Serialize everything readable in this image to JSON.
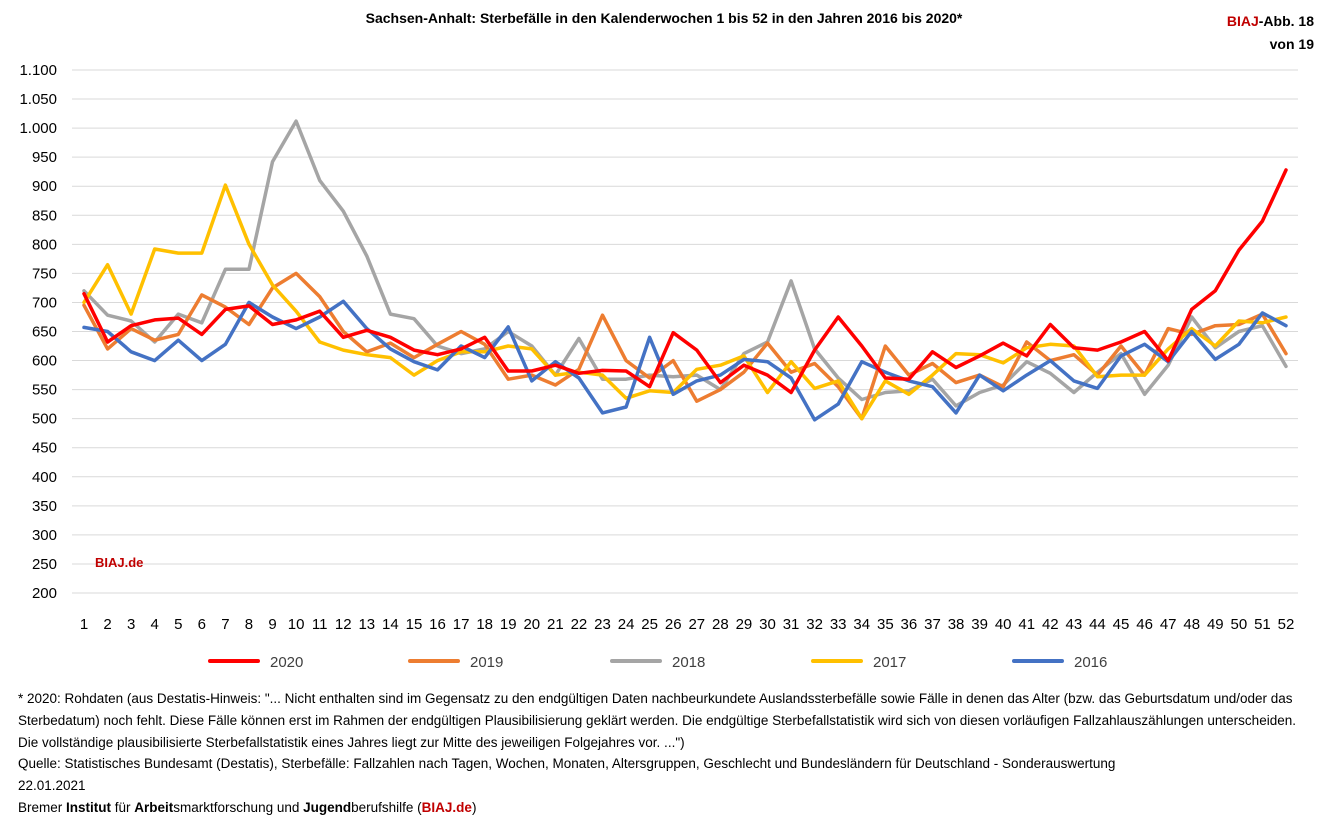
{
  "header": {
    "title": "Sachsen-Anhalt: Sterbefälle in den Kalenderwochen 1 bis 52 in den Jahren 2016 bis 2020*",
    "badge_brand": "BIAJ",
    "badge_rest": "-Abb. 18",
    "badge_line2": "von 19"
  },
  "watermark": "BIAJ.de",
  "chart_data": {
    "type": "line",
    "title": "Sachsen-Anhalt: Sterbefälle in den Kalenderwochen 1 bis 52 in den Jahren 2016 bis 2020*",
    "xlabel": "",
    "ylabel": "",
    "ylim": [
      200,
      1100
    ],
    "ytick_step": 50,
    "ytick_labels": [
      "200",
      "250",
      "300",
      "350",
      "400",
      "450",
      "500",
      "550",
      "600",
      "650",
      "700",
      "750",
      "800",
      "850",
      "900",
      "950",
      "1.000",
      "1.050",
      "1.100"
    ],
    "grid": "horizontal",
    "legend_position": "bottom",
    "x": [
      1,
      2,
      3,
      4,
      5,
      6,
      7,
      8,
      9,
      10,
      11,
      12,
      13,
      14,
      15,
      16,
      17,
      18,
      19,
      20,
      21,
      22,
      23,
      24,
      25,
      26,
      27,
      28,
      29,
      30,
      31,
      32,
      33,
      34,
      35,
      36,
      37,
      38,
      39,
      40,
      41,
      42,
      43,
      44,
      45,
      46,
      47,
      48,
      49,
      50,
      51,
      52
    ],
    "series": [
      {
        "name": "2018",
        "color": "#a5a5a5",
        "values": [
          720,
          678,
          668,
          632,
          680,
          665,
          757,
          757,
          942,
          1012,
          910,
          857,
          780,
          680,
          672,
          625,
          612,
          620,
          650,
          625,
          575,
          638,
          568,
          568,
          575,
          572,
          575,
          550,
          612,
          632,
          737,
          620,
          570,
          533,
          545,
          548,
          568,
          522,
          545,
          558,
          598,
          578,
          545,
          580,
          612,
          542,
          592,
          675,
          622,
          650,
          660,
          590
        ]
      },
      {
        "name": "2019",
        "color": "#ed7d31",
        "values": [
          695,
          620,
          655,
          635,
          645,
          713,
          692,
          662,
          725,
          750,
          710,
          650,
          615,
          630,
          605,
          628,
          650,
          628,
          568,
          575,
          558,
          585,
          678,
          600,
          570,
          600,
          530,
          550,
          580,
          630,
          580,
          595,
          555,
          500,
          625,
          575,
          595,
          562,
          575,
          555,
          632,
          600,
          610,
          575,
          625,
          575,
          655,
          645,
          660,
          662,
          680,
          612
        ]
      },
      {
        "name": "2017",
        "color": "#ffc000",
        "values": [
          700,
          765,
          680,
          792,
          785,
          785,
          902,
          800,
          730,
          685,
          632,
          618,
          610,
          605,
          575,
          600,
          615,
          615,
          625,
          620,
          575,
          580,
          575,
          535,
          548,
          545,
          585,
          592,
          608,
          545,
          598,
          552,
          565,
          500,
          565,
          542,
          575,
          612,
          610,
          596,
          622,
          628,
          625,
          572,
          575,
          575,
          620,
          655,
          625,
          668,
          665,
          675
        ]
      },
      {
        "name": "2016",
        "color": "#4472c4",
        "values": [
          657,
          650,
          615,
          600,
          635,
          600,
          628,
          700,
          675,
          655,
          675,
          702,
          655,
          620,
          598,
          584,
          625,
          605,
          658,
          565,
          598,
          570,
          510,
          520,
          640,
          542,
          565,
          575,
          602,
          598,
          570,
          498,
          525,
          598,
          580,
          565,
          555,
          510,
          575,
          548,
          575,
          600,
          565,
          552,
          608,
          628,
          598,
          650,
          602,
          628,
          682,
          660
        ]
      },
      {
        "name": "2020",
        "color": "#ff0000",
        "values": [
          715,
          632,
          660,
          670,
          673,
          645,
          688,
          694,
          662,
          670,
          685,
          640,
          652,
          640,
          618,
          610,
          620,
          640,
          582,
          582,
          592,
          578,
          583,
          582,
          555,
          648,
          618,
          562,
          592,
          575,
          545,
          618,
          675,
          625,
          570,
          568,
          615,
          588,
          608,
          630,
          608,
          662,
          622,
          618,
          632,
          650,
          600,
          688,
          720,
          790,
          840,
          928
        ]
      }
    ],
    "legend": [
      "2020",
      "2019",
      "2018",
      "2017",
      "2016"
    ]
  },
  "footnotes": {
    "line1": "* 2020: Rohdaten (aus Destatis-Hinweis: \"... Nicht enthalten sind im Gegensatz zu den endgültigen Daten nachbeurkundete Auslandssterbefälle sowie Fälle in denen das Alter (bzw. das Geburtsdatum und/oder das Sterbedatum) noch fehlt. Diese Fälle können erst im Rahmen der endgültigen Plausibilisierung geklärt werden. Die endgültige Sterbefallstatistik wird sich von diesen vorläufigen Fallzahlauszählungen unterscheiden. Die vollständige plausibilisierte Sterbefallstatistik eines Jahres liegt zur Mitte des jeweiligen Folgejahres vor. ...\")",
    "line2": "Quelle: Statistisches Bundesamt (Destatis), Sterbefälle: Fallzahlen nach Tagen, Wochen, Monaten, Altersgruppen, Geschlecht und Bundesländern für Deutschland - Sonderauswertung",
    "line3": "22.01.2021",
    "credit_1": "Bremer ",
    "credit_2": "Institut",
    "credit_3": " für ",
    "credit_4": "Arbeit",
    "credit_5": "smarktforschung und ",
    "credit_6": "Jugend",
    "credit_7": "berufshilfe (",
    "credit_8": "BIAJ.de",
    "credit_9": ")"
  }
}
